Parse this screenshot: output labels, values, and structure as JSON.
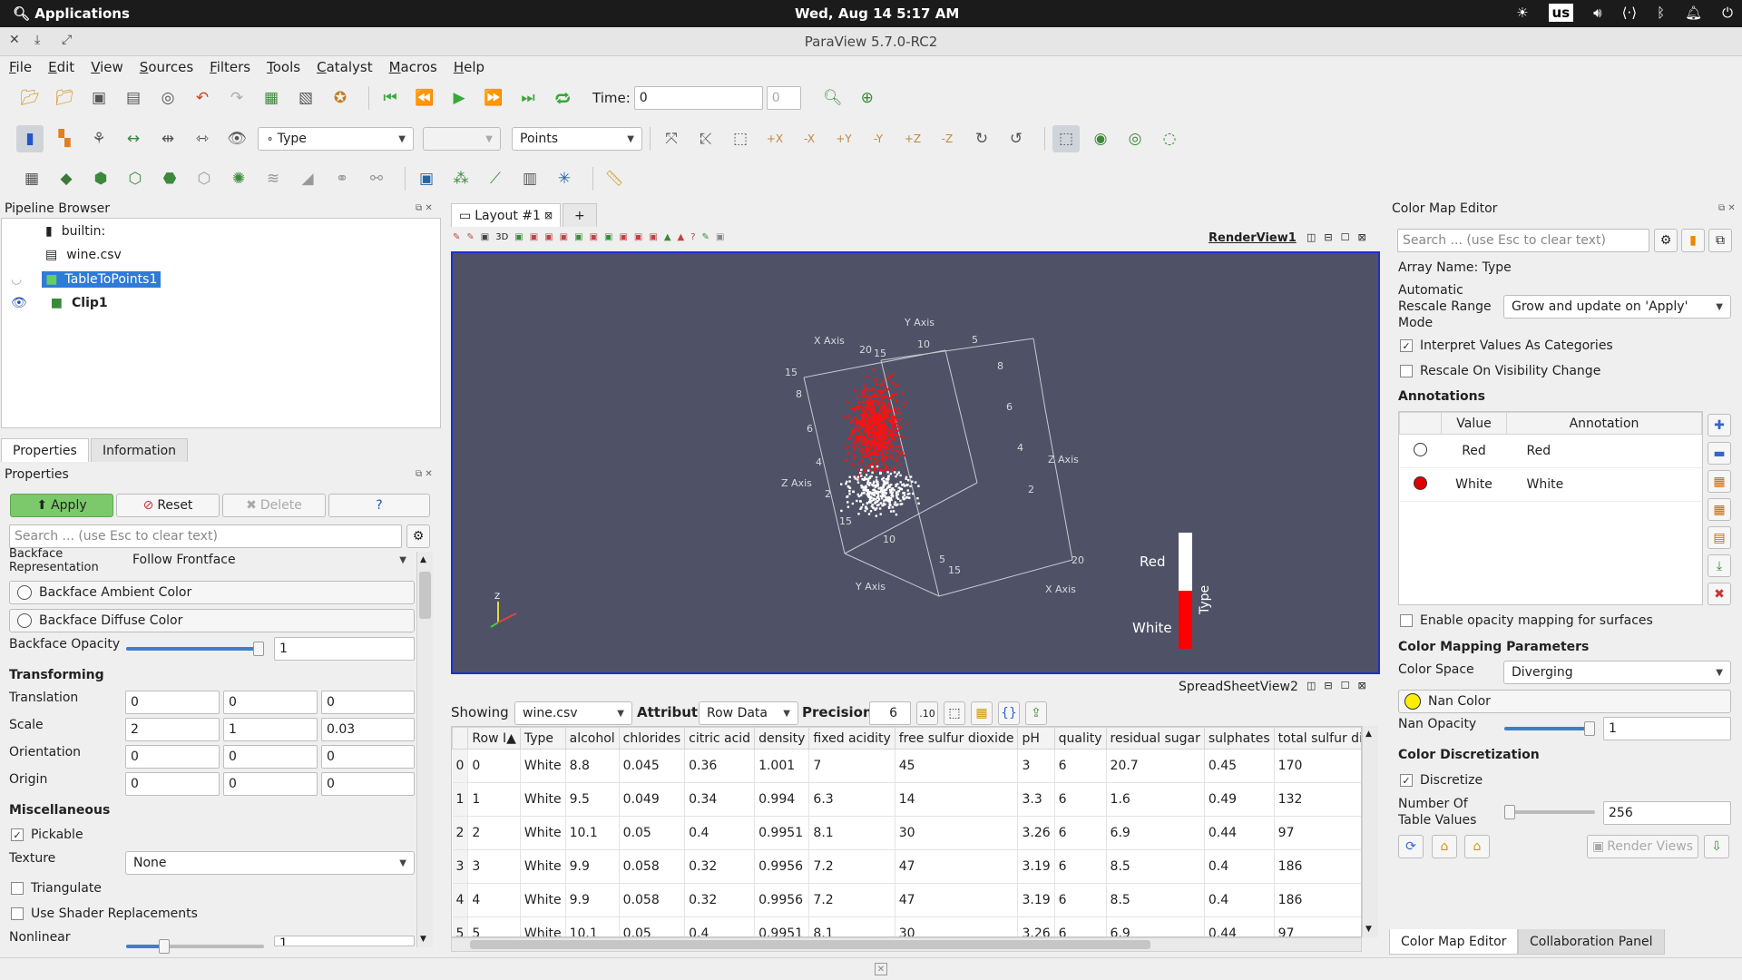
{
  "system": {
    "apps_label": "Applications",
    "clock": "Wed, Aug 14   5:17 AM",
    "keyboard": "us"
  },
  "window": {
    "title": "ParaView 5.7.0-RC2"
  },
  "menu": [
    "File",
    "Edit",
    "View",
    "Sources",
    "Filters",
    "Tools",
    "Catalyst",
    "Macros",
    "Help"
  ],
  "toolbar": {
    "time_label": "Time:",
    "time_value": "0",
    "time_index": "0",
    "color_by": "Type",
    "representation": "Points"
  },
  "pipeline": {
    "title": "Pipeline Browser",
    "items": [
      {
        "label": "builtin:"
      },
      {
        "label": "wine.csv"
      },
      {
        "label": "TableToPoints1"
      },
      {
        "label": "Clip1"
      }
    ]
  },
  "properties": {
    "tabs": [
      "Properties",
      "Information"
    ],
    "title": "Properties",
    "apply": "Apply",
    "reset": "Reset",
    "delete": "Delete",
    "help": "?",
    "search_placeholder": "Search ... (use Esc to clear text)",
    "backface_rep_label": "Backface\nRepresentation",
    "backface_rep_value": "Follow Frontface",
    "backface_ambient": "Backface Ambient Color",
    "backface_diffuse": "Backface Diffuse Color",
    "backface_opacity_label": "Backface Opacity",
    "backface_opacity_value": "1",
    "backface_opacity_fraction": 1.0,
    "transforming": "Transforming",
    "translation_label": "Translation",
    "translation": [
      "0",
      "0",
      "0"
    ],
    "scale_label": "Scale",
    "scale": [
      "2",
      "1",
      "0.03"
    ],
    "orientation_label": "Orientation",
    "orientation": [
      "0",
      "0",
      "0"
    ],
    "origin_label": "Origin",
    "origin": [
      "0",
      "0",
      "0"
    ],
    "misc": "Miscellaneous",
    "pickable": "Pickable",
    "texture_label": "Texture",
    "texture_value": "None",
    "triangulate": "Triangulate",
    "shader": "Use Shader Replacements",
    "nonlinear": "Nonlinear",
    "nonlinear_value": "1"
  },
  "layout": {
    "tab": "Layout #1",
    "plus": "+",
    "render_view": "RenderView1",
    "spreadsheet_view": "SpreadSheetView2"
  },
  "render": {
    "axis_labels": [
      "X Axis",
      "Y Axis",
      "Z Axis",
      "Z Axis",
      "Y Axis",
      "X Axis"
    ],
    "ticks": [
      "15",
      "20",
      "10",
      "5",
      "15",
      "8",
      "6",
      "4",
      "2",
      "8",
      "6",
      "4",
      "2",
      "15",
      "10",
      "5",
      "15",
      "20"
    ],
    "legend": {
      "title": "Type",
      "entries": [
        "Red",
        "White"
      ],
      "colors": {
        "Red": "#ffffff",
        "White": "#ff0000"
      }
    }
  },
  "spreadsheet": {
    "showing_label": "Showing",
    "showing_value": "wine.csv",
    "attribute_label": "Attribute:",
    "attribute_value": "Row Data",
    "precision_label": "Precision:",
    "precision_value": "6",
    "columns": [
      "Row I▲",
      "Type",
      "alcohol",
      "chlorides",
      "citric acid",
      "density",
      "fixed acidity",
      "free sulfur dioxide",
      "pH",
      "quality",
      "residual sugar",
      "sulphates",
      "total sulfur di"
    ],
    "rows": [
      [
        "0",
        "0",
        "White",
        "8.8",
        "0.045",
        "0.36",
        "1.001",
        "7",
        "45",
        "3",
        "6",
        "20.7",
        "0.45",
        "170"
      ],
      [
        "1",
        "1",
        "White",
        "9.5",
        "0.049",
        "0.34",
        "0.994",
        "6.3",
        "14",
        "3.3",
        "6",
        "1.6",
        "0.49",
        "132"
      ],
      [
        "2",
        "2",
        "White",
        "10.1",
        "0.05",
        "0.4",
        "0.9951",
        "8.1",
        "30",
        "3.26",
        "6",
        "6.9",
        "0.44",
        "97"
      ],
      [
        "3",
        "3",
        "White",
        "9.9",
        "0.058",
        "0.32",
        "0.9956",
        "7.2",
        "47",
        "3.19",
        "6",
        "8.5",
        "0.4",
        "186"
      ],
      [
        "4",
        "4",
        "White",
        "9.9",
        "0.058",
        "0.32",
        "0.9956",
        "7.2",
        "47",
        "3.19",
        "6",
        "8.5",
        "0.4",
        "186"
      ],
      [
        "5",
        "5",
        "White",
        "10.1",
        "0.05",
        "0.4",
        "0.9951",
        "8.1",
        "30",
        "3.26",
        "6",
        "6.9",
        "0.44",
        "97"
      ]
    ]
  },
  "colormap": {
    "title": "Color Map Editor",
    "search_placeholder": "Search ... (use Esc to clear text)",
    "array_name": "Array Name: Type",
    "rescale_label": "Automatic\nRescale Range\nMode",
    "rescale_value": "Grow and update on 'Apply'",
    "interpret": "Interpret Values As Categories",
    "rescale_visibility": "Rescale On Visibility Change",
    "annotations": "Annotations",
    "ann_cols": [
      "Value",
      "Annotation"
    ],
    "ann_rows": [
      {
        "value": "Red",
        "annotation": "Red",
        "color": "#ffffff"
      },
      {
        "value": "White",
        "annotation": "White",
        "color": "#e00000"
      }
    ],
    "opacity_mapping": "Enable opacity mapping for surfaces",
    "cmp": "Color Mapping Parameters",
    "color_space_label": "Color Space",
    "color_space_value": "Diverging",
    "nan_color": "Nan Color",
    "nan_color_value": "#ffee00",
    "nan_opacity_label": "Nan Opacity",
    "nan_opacity_value": "1",
    "nan_opacity_fraction": 1.0,
    "discretization": "Color Discretization",
    "discretize": "Discretize",
    "num_table_label": "Number Of\nTable Values",
    "num_table_value": "256",
    "num_table_fraction": 0.12,
    "render_views": "Render Views",
    "bottom_tabs": [
      "Color Map Editor",
      "Collaboration Panel"
    ]
  }
}
